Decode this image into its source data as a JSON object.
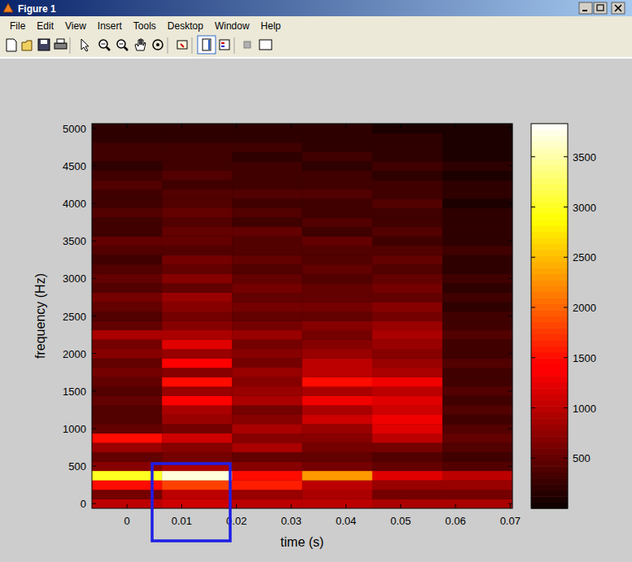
{
  "window": {
    "title": "Figure 1",
    "menu": [
      "File",
      "Edit",
      "View",
      "Insert",
      "Tools",
      "Desktop",
      "Window",
      "Help"
    ]
  },
  "chart_data": {
    "type": "heatmap",
    "x_label": "time (s)",
    "y_label": "frequency (Hz)",
    "x": [
      0,
      0.0128,
      0.0256,
      0.0384,
      0.0512,
      0.064
    ],
    "y": [
      0,
      125,
      250,
      375,
      500,
      625,
      750,
      875,
      1000,
      1125,
      1250,
      1375,
      1500,
      1625,
      1750,
      1875,
      2000,
      2125,
      2250,
      2375,
      2500,
      2625,
      2750,
      2875,
      3000,
      3125,
      3250,
      3375,
      3500,
      3625,
      3750,
      3875,
      4000,
      4125,
      4250,
      4375,
      4500,
      4625,
      4750,
      4875,
      5000
    ],
    "xlim": [
      -0.0064,
      0.0704
    ],
    "ylim": [
      -62.5,
      5062.5
    ],
    "xticks": [
      0,
      0.01,
      0.02,
      0.03,
      0.04,
      0.05,
      0.06,
      0.07
    ],
    "yticks": [
      0,
      500,
      1000,
      1500,
      2000,
      2500,
      3000,
      3500,
      4000,
      4500,
      5000
    ],
    "cells": [
      [
        1000,
        600,
        1500,
        3000,
        700,
        500,
        800,
        1500,
        500,
        400,
        400,
        500,
        400,
        500,
        600,
        500,
        700,
        600,
        900,
        500,
        400,
        500,
        600,
        400,
        500,
        400,
        300,
        400,
        500,
        300,
        300,
        400,
        300,
        300,
        400,
        300,
        200,
        300,
        300,
        200,
        200
      ],
      [
        1100,
        1000,
        1800,
        3700,
        900,
        600,
        700,
        1100,
        600,
        800,
        900,
        1400,
        800,
        1500,
        700,
        1400,
        800,
        1200,
        900,
        700,
        600,
        700,
        800,
        500,
        700,
        500,
        600,
        400,
        500,
        500,
        400,
        500,
        400,
        400,
        300,
        400,
        300,
        300,
        300,
        200,
        200
      ],
      [
        1000,
        800,
        1600,
        1500,
        700,
        500,
        900,
        700,
        900,
        700,
        600,
        900,
        800,
        700,
        800,
        600,
        700,
        600,
        800,
        600,
        500,
        600,
        500,
        600,
        500,
        400,
        500,
        400,
        400,
        500,
        300,
        400,
        300,
        400,
        300,
        300,
        300,
        200,
        300,
        200,
        200
      ],
      [
        1000,
        900,
        1000,
        2300,
        600,
        500,
        600,
        700,
        800,
        1100,
        900,
        1300,
        900,
        1500,
        1000,
        1000,
        800,
        700,
        600,
        700,
        500,
        600,
        500,
        500,
        400,
        500,
        400,
        400,
        500,
        300,
        400,
        300,
        300,
        400,
        300,
        300,
        200,
        300,
        200,
        200,
        200
      ],
      [
        900,
        600,
        800,
        1200,
        500,
        400,
        600,
        1000,
        1200,
        1300,
        1100,
        1200,
        1000,
        1300,
        900,
        800,
        700,
        800,
        900,
        800,
        600,
        700,
        500,
        600,
        500,
        400,
        500,
        400,
        300,
        400,
        300,
        300,
        400,
        300,
        300,
        200,
        300,
        200,
        200,
        200,
        100
      ],
      [
        900,
        600,
        800,
        1000,
        400,
        300,
        400,
        500,
        400,
        300,
        400,
        300,
        400,
        300,
        300,
        400,
        300,
        300,
        400,
        300,
        300,
        200,
        300,
        200,
        300,
        200,
        200,
        300,
        200,
        200,
        200,
        200,
        100,
        200,
        200,
        100,
        200,
        100,
        100,
        100,
        100
      ]
    ],
    "color_range": [
      0,
      3830
    ],
    "color_ticks": [
      500,
      1000,
      1500,
      2000,
      2500,
      3000,
      3500
    ]
  }
}
